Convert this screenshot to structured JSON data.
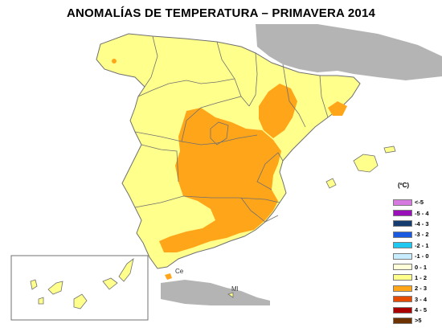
{
  "title": "ANOMALÍAS DE TEMPERATURA – PRIMAVERA 2014",
  "legend": {
    "unit": "(ºC)",
    "items": [
      {
        "label": "<-5",
        "color": "#d67ae0"
      },
      {
        "label": "-5 - 4",
        "color": "#9a10b8"
      },
      {
        "label": "-4 - 3",
        "color": "#143c6e"
      },
      {
        "label": "-3 - 2",
        "color": "#1a5ae0"
      },
      {
        "label": "-2 - 1",
        "color": "#1ec8f0"
      },
      {
        "label": "-1 - 0",
        "color": "#c8ecff"
      },
      {
        "label": "0 - 1",
        "color": "#ffffd8"
      },
      {
        "label": "1 - 2",
        "color": "#ffff8c"
      },
      {
        "label": "2 - 3",
        "color": "#ffa519"
      },
      {
        "label": "3 - 4",
        "color": "#e64b00"
      },
      {
        "label": "4 - 5",
        "color": "#aa0000"
      },
      {
        "label": ">5",
        "color": "#6e3200"
      }
    ]
  },
  "cities": {
    "ceuta": "Ce",
    "melilla": "Ml"
  },
  "colors": {
    "land": "#ffff8c",
    "warm": "#ffa519",
    "neighbor": "#b4b4b4",
    "border": "#707070"
  }
}
